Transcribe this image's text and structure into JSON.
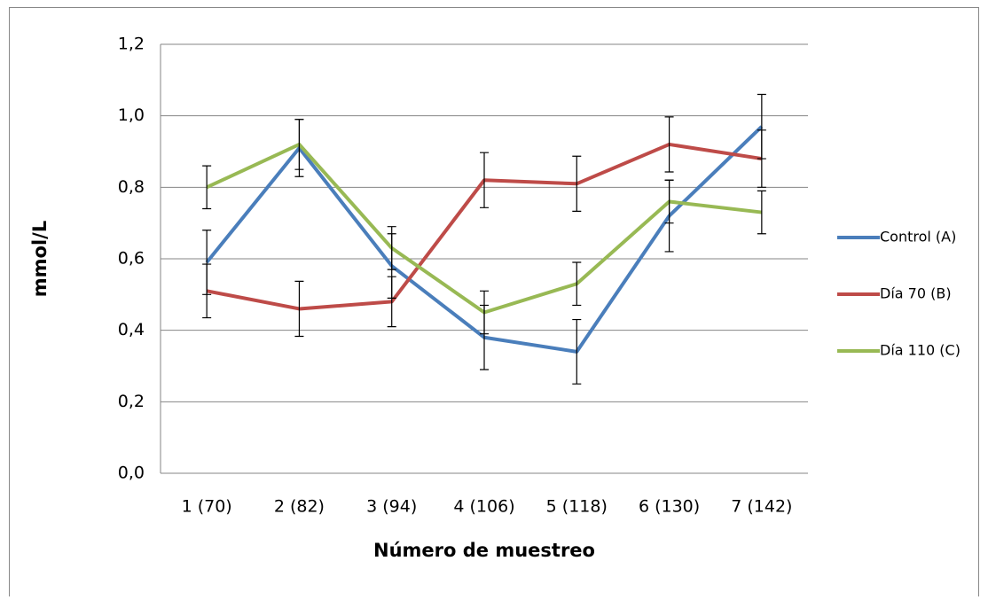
{
  "chart_data": {
    "type": "line",
    "x_label": "Número de muestreo",
    "y_label": "mmol/L",
    "categories": [
      "1 (70)",
      "2 (82)",
      "3 (94)",
      "4 (106)",
      "5 (118)",
      "6 (130)",
      "7 (142)"
    ],
    "series": [
      {
        "name": "Control (A)",
        "color": "#4a7ebb",
        "values": [
          0.59,
          0.91,
          0.58,
          0.38,
          0.34,
          0.72,
          0.97
        ],
        "errors": [
          0.09,
          0.08,
          0.09,
          0.09,
          0.09,
          0.1,
          0.09
        ]
      },
      {
        "name": "Día 70 (B)",
        "color": "#be4b48",
        "values": [
          0.51,
          0.46,
          0.48,
          0.82,
          0.81,
          0.92,
          0.88
        ],
        "errors": [
          0.075,
          0.077,
          0.07,
          0.077,
          0.077,
          0.077,
          0.08
        ]
      },
      {
        "name": "Día 110 (C)",
        "color": "#98b954",
        "values": [
          0.8,
          0.92,
          0.63,
          0.45,
          0.53,
          0.76,
          0.73
        ],
        "errors": [
          0.06,
          0.07,
          0.06,
          0.06,
          0.06,
          0.06,
          0.06
        ]
      }
    ],
    "ylim": [
      0,
      1.2
    ],
    "yticks": [
      {
        "value": 0,
        "label": "0,0"
      },
      {
        "value": 0.2,
        "label": "0,2"
      },
      {
        "value": 0.4,
        "label": "0,4"
      },
      {
        "value": 0.6,
        "label": "0,6"
      },
      {
        "value": 0.8,
        "label": "0,8"
      },
      {
        "value": 1.0,
        "label": "1,0"
      },
      {
        "value": 1.2,
        "label": "1,2"
      }
    ],
    "grid": true,
    "legend": "right"
  }
}
